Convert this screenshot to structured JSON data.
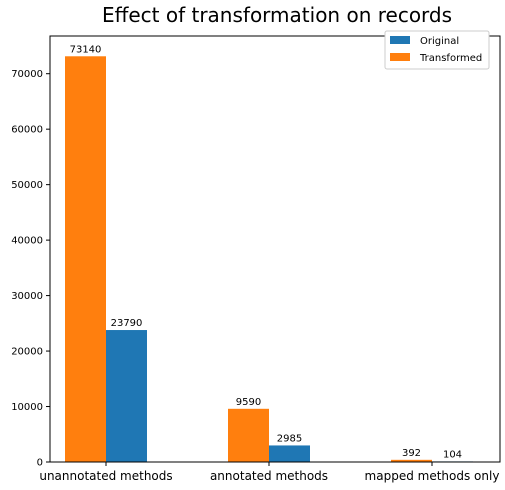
{
  "chart_data": {
    "type": "bar",
    "title": "Effect of transformation on records",
    "xlabel": "",
    "ylabel": "",
    "categories": [
      "unannotated methods",
      "annotated methods",
      "mapped methods only"
    ],
    "series": [
      {
        "name": "Transformed",
        "values": [
          73140,
          9590,
          392
        ],
        "color": "#ff7f0e"
      },
      {
        "name": "Original",
        "values": [
          23790,
          2985,
          104
        ],
        "color": "#1f77b4"
      }
    ],
    "data_labels": [
      [
        "73140",
        "9590",
        "392"
      ],
      [
        "23790",
        "2985",
        "104"
      ]
    ],
    "yticks": [
      0,
      10000,
      20000,
      30000,
      40000,
      50000,
      60000,
      70000
    ],
    "ytick_labels": [
      "0",
      "10000",
      "20000",
      "30000",
      "40000",
      "50000",
      "60000",
      "70000"
    ],
    "ylim": [
      0,
      76797
    ],
    "grid": false,
    "legend": {
      "placement": "top-right",
      "entries": [
        {
          "label": "Original",
          "color": "#1f77b4"
        },
        {
          "label": "Transformed",
          "color": "#ff7f0e"
        }
      ]
    }
  }
}
